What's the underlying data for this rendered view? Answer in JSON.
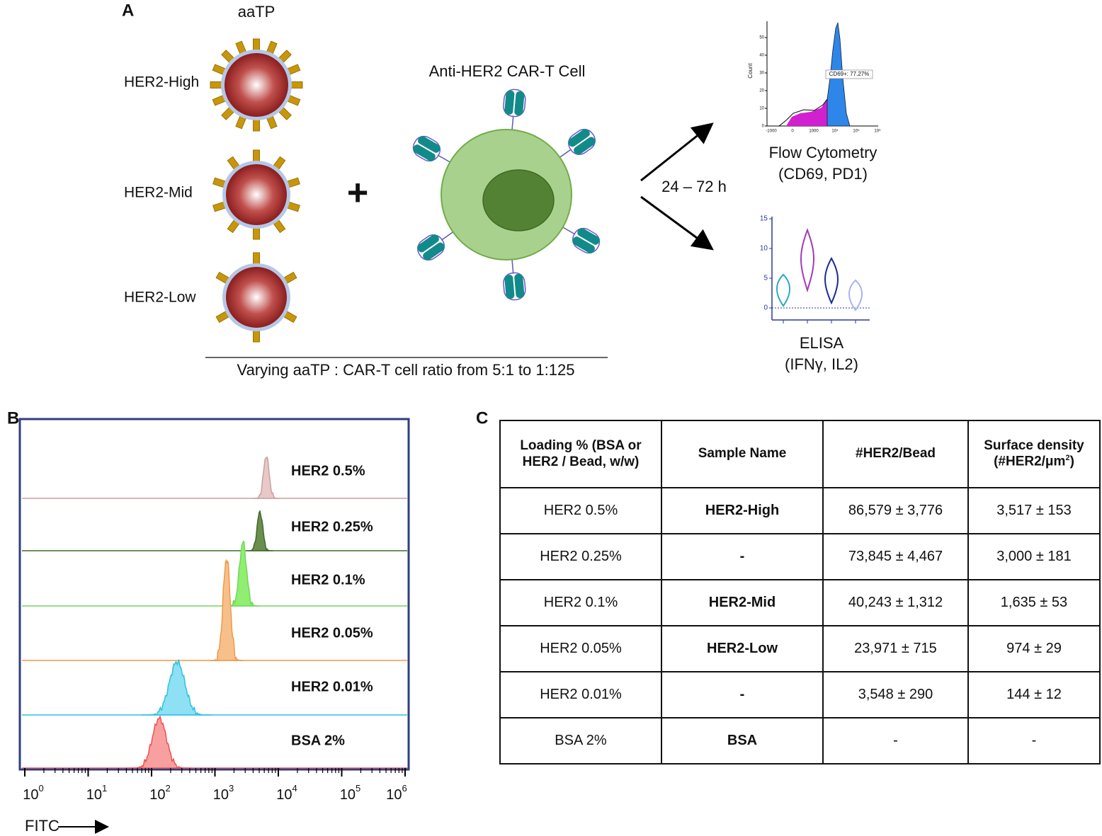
{
  "panel_a": {
    "label": "A",
    "aatp": "aaTP",
    "beads": [
      "HER2-High",
      "HER2-Mid",
      "HER2-Low"
    ],
    "plus": "+",
    "cell": "Anti-HER2 CAR-T Cell",
    "time": "24 – 72 h",
    "flow": {
      "title": "Flow Cytometry",
      "subtitle": "(CD69, PD1)",
      "y_label": "Count",
      "gate": "CD69+: 77.27%",
      "yticks": [
        0,
        10,
        20,
        30,
        40,
        50
      ],
      "xticks": [
        "-1000",
        "0",
        "1000",
        "10⁴",
        "10⁵",
        "10⁶"
      ]
    },
    "elisa": {
      "title": "ELISA",
      "subtitle": "(IFNγ, IL2)",
      "yticks": [
        0,
        5,
        10,
        15
      ]
    },
    "caption": "Varying aaTP : CAR-T cell ratio from 5:1 to 1:125"
  },
  "panel_b": {
    "label": "B",
    "samples": [
      "HER2 0.5%",
      "HER2 0.25%",
      "HER2 0.1%",
      "HER2 0.05%",
      "HER2 0.01%",
      "BSA 2%"
    ],
    "xticks": [
      {
        "base": "10",
        "exp": "0"
      },
      {
        "base": "10",
        "exp": "1"
      },
      {
        "base": "10",
        "exp": "2"
      },
      {
        "base": "10",
        "exp": "3"
      },
      {
        "base": "10",
        "exp": "4"
      },
      {
        "base": "10",
        "exp": "5"
      },
      {
        "base": "10",
        "exp": "6"
      }
    ],
    "x_label": "FITC"
  },
  "panel_c": {
    "label": "C",
    "header": [
      "Loading % (BSA or HER2 / Bead, w/w)",
      "Sample Name",
      "#HER2/Bead",
      {
        "line1": "Surface density",
        "line2": "(#HER2/μm",
        "sup": "2",
        "end": ")"
      }
    ],
    "rows": [
      [
        "HER2 0.5%",
        "HER2-High",
        "86,579 ± 3,776",
        "3,517 ± 153"
      ],
      [
        "HER2 0.25%",
        "-",
        "73,845 ± 4,467",
        "3,000 ± 181"
      ],
      [
        "HER2 0.1%",
        "HER2-Mid",
        "40,243 ± 1,312",
        "1,635 ± 53"
      ],
      [
        "HER2 0.05%",
        "HER2-Low",
        "23,971 ± 715",
        "974 ± 29"
      ],
      [
        "HER2 0.01%",
        "-",
        "3,548 ± 290",
        "144 ± 12"
      ],
      [
        "BSA 2%",
        "BSA",
        "-",
        "-"
      ]
    ]
  }
}
